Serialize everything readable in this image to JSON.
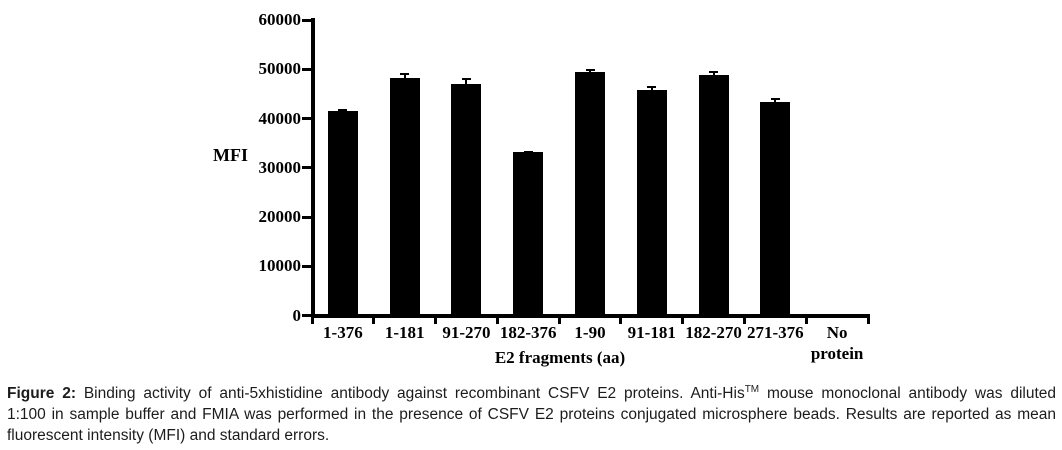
{
  "chart_data": {
    "type": "bar",
    "title": "",
    "categories": [
      "1-376",
      "1-181",
      "91-270",
      "182-376",
      "1-90",
      "91-181",
      "182-270",
      "271-376",
      "No protein"
    ],
    "values": [
      41500,
      48200,
      47000,
      33100,
      49500,
      45800,
      48800,
      43300,
      0
    ],
    "errors": [
      300,
      900,
      1000,
      150,
      300,
      500,
      700,
      700,
      0
    ],
    "xlabel": "E2 fragments (aa)",
    "ylabel": "MFI",
    "ylim": [
      0,
      60000
    ],
    "yticks": [
      0,
      10000,
      20000,
      30000,
      40000,
      50000,
      60000
    ],
    "bar_color": "#000000",
    "error_bar_color": "#000000",
    "grid": false,
    "legend": "none"
  },
  "caption": {
    "label": "Figure 2:",
    "line1_pre_sup": " Binding activity of anti-5xhistidine antibody against recombinant CSFV E2 proteins. Anti-His",
    "line1_sup": "TM",
    "line1_post_sup": " mouse monoclonal antibody was diluted",
    "line2": "1:100 in sample buffer and FMIA was performed in the presence of CSFV E2 proteins conjugated microsphere beads.  Results are reported as mean",
    "line3": "fluorescent intensity (MFI) and standard errors."
  }
}
